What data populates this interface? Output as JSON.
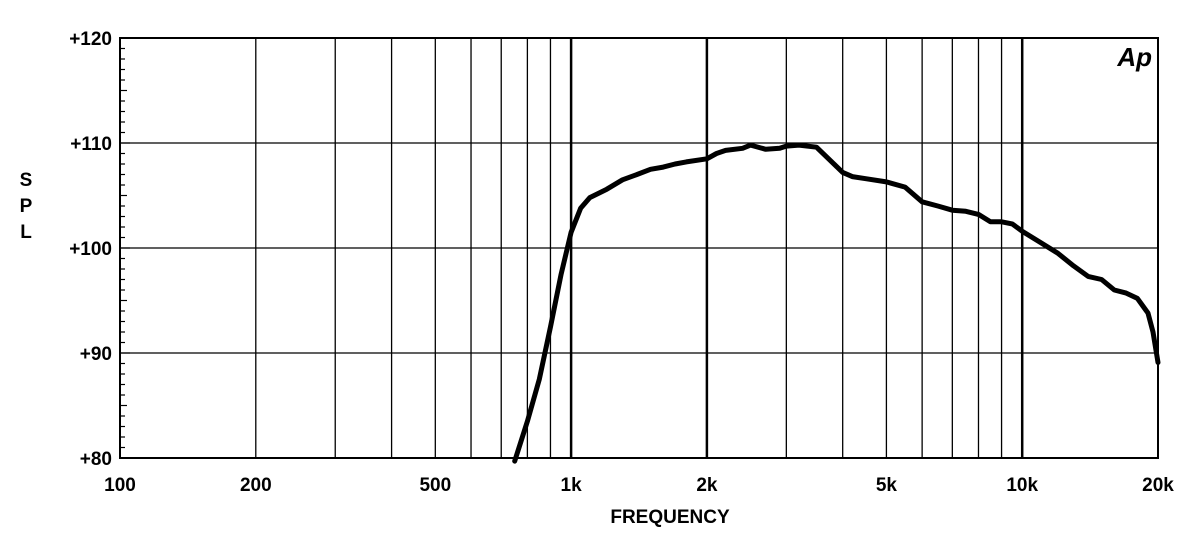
{
  "chart_data": {
    "type": "line",
    "xscale": "log",
    "xlim": [
      100,
      20000
    ],
    "ylim": [
      80,
      120
    ],
    "grid": true,
    "xlabel": "FREQUENCY",
    "ylabel": "SPL",
    "logo_text": "Ap",
    "x_ticks": [
      {
        "value": 100,
        "label": "100"
      },
      {
        "value": 200,
        "label": "200"
      },
      {
        "value": 500,
        "label": "500"
      },
      {
        "value": 1000,
        "label": "1k"
      },
      {
        "value": 2000,
        "label": "2k"
      },
      {
        "value": 5000,
        "label": "5k"
      },
      {
        "value": 10000,
        "label": "10k"
      },
      {
        "value": 20000,
        "label": "20k"
      }
    ],
    "y_ticks": [
      {
        "value": 80,
        "label": "+80"
      },
      {
        "value": 90,
        "label": "+90"
      },
      {
        "value": 100,
        "label": "+100"
      },
      {
        "value": 110,
        "label": "+110"
      },
      {
        "value": 120,
        "label": "+120"
      }
    ],
    "series": [
      {
        "x": [
          750,
          800,
          850,
          900,
          950,
          1000,
          1050,
          1100,
          1200,
          1300,
          1400,
          1500,
          1600,
          1700,
          1800,
          2000,
          2100,
          2200,
          2400,
          2500,
          2700,
          2900,
          3000,
          3200,
          3500,
          3700,
          4000,
          4200,
          4500,
          5000,
          5500,
          6000,
          6500,
          7000,
          7500,
          8000,
          8500,
          9000,
          9500,
          10000,
          11000,
          12000,
          13000,
          14000,
          15000,
          16000,
          17000,
          18000,
          19000,
          19500,
          20000
        ],
        "y": [
          79.7,
          83.5,
          87.5,
          92.5,
          97.5,
          101.5,
          103.8,
          104.8,
          105.6,
          106.5,
          107.0,
          107.5,
          107.7,
          108.0,
          108.2,
          108.5,
          109.0,
          109.3,
          109.5,
          109.8,
          109.4,
          109.5,
          109.7,
          109.8,
          109.6,
          108.6,
          107.2,
          106.8,
          106.6,
          106.3,
          105.8,
          104.4,
          104.0,
          103.6,
          103.5,
          103.2,
          102.5,
          102.5,
          102.3,
          101.6,
          100.5,
          99.5,
          98.3,
          97.3,
          97.0,
          96.0,
          95.7,
          95.2,
          93.8,
          92.0,
          89.1
        ]
      }
    ]
  }
}
